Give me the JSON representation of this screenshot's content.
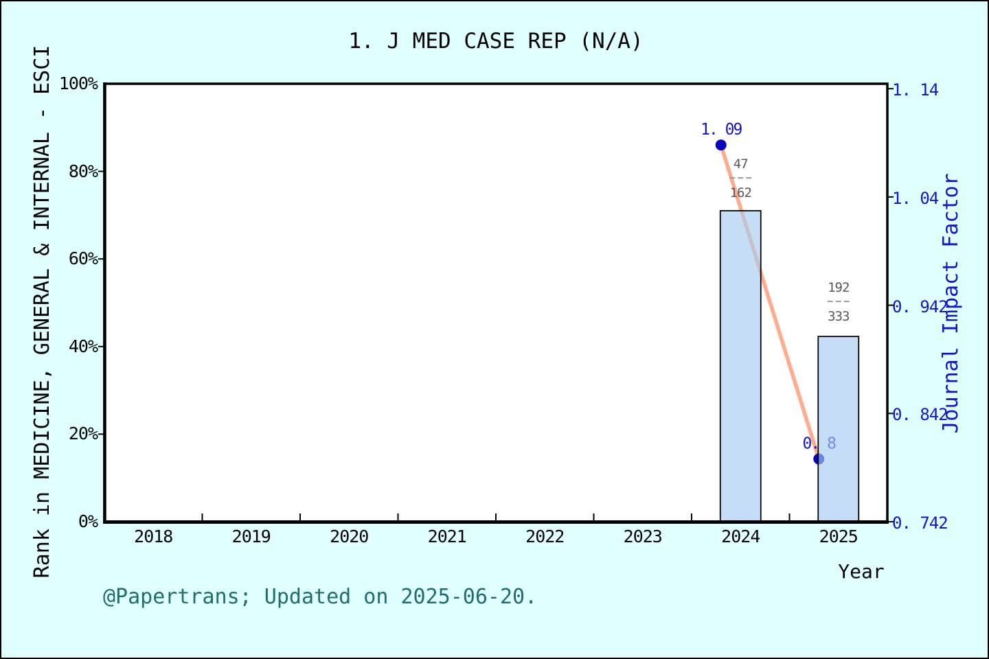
{
  "footer": {
    "text": "@Papertrans; Updated on 2025-06-20."
  },
  "colors": {
    "background": "#E0FFFF",
    "plot_background": "#FFFFFF",
    "bar_fill": "rgba(166,205,240,0.65)",
    "bar_edge": "#000000",
    "trend_line": "#FF9C78",
    "marker": "#0606BE",
    "blue_text": "#1414CC",
    "fraction_text": "#595959",
    "fraction_dash": "#9A9A9A",
    "footer_text": "#1E6E6E",
    "axis_color": "#000000"
  },
  "chart_data": {
    "type": "bar+line",
    "title": "1. J MED CASE REP (N/A)",
    "xlabel": "Year",
    "x_categories": [
      "2018",
      "2019",
      "2020",
      "2021",
      "2022",
      "2023",
      "2024",
      "2025"
    ],
    "left_axis": {
      "label": "Rank in MEDICINE, GENERAL & INTERNAL - ESCI",
      "min": 0,
      "max": 100,
      "ticks": [
        {
          "value": 0,
          "label": "0%"
        },
        {
          "value": 20,
          "label": "20%"
        },
        {
          "value": 40,
          "label": "40%"
        },
        {
          "value": 60,
          "label": "60%"
        },
        {
          "value": 80,
          "label": "80%"
        },
        {
          "value": 100,
          "label": "100%"
        }
      ]
    },
    "right_axis": {
      "label": "Journal Impact Factor",
      "min": 0.742,
      "max": 1.147,
      "ticks": [
        {
          "value": 0.742,
          "label": "0. 742"
        },
        {
          "value": 0.842,
          "label": "0. 842"
        },
        {
          "value": 0.942,
          "label": "0. 942"
        },
        {
          "value": 1.042,
          "label": "1. 04"
        },
        {
          "value": 1.142,
          "label": "1. 14"
        }
      ]
    },
    "bars": {
      "series_name": "Rank percentile in category",
      "points": [
        {
          "year": "2024",
          "percent": 71.0,
          "fraction_numerator": "47",
          "fraction_denominator": "162"
        },
        {
          "year": "2025",
          "percent": 42.3,
          "fraction_numerator": "192",
          "fraction_denominator": "333"
        }
      ]
    },
    "line": {
      "series_name": "Journal Impact Factor",
      "points": [
        {
          "year": "2024",
          "value": 1.09,
          "label": "1. 09"
        },
        {
          "year": "2025",
          "value": 0.8,
          "label": "0. 8"
        }
      ]
    }
  }
}
